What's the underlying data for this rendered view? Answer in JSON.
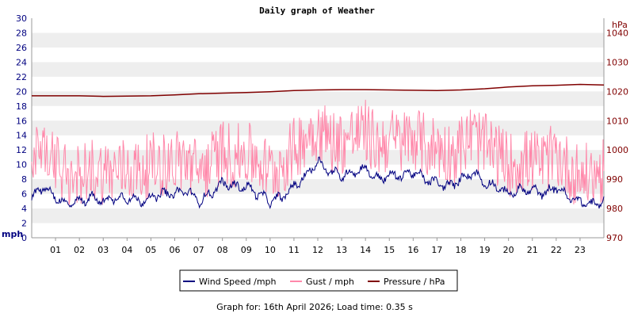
{
  "colors": {
    "wind": "#000080",
    "gust": "#ff88aa",
    "pressure": "#800000",
    "band": "#eeeeee",
    "left_axis": "#000080",
    "right_axis": "#800000"
  },
  "chart_data": {
    "type": "line",
    "title": "Daily graph of Weather",
    "ylabel_left": "mph",
    "ylabel_right": "hPa",
    "ylim_left": [
      0,
      30
    ],
    "ylim_right": [
      970,
      1045
    ],
    "yticks_left": [
      0,
      2,
      4,
      6,
      8,
      10,
      12,
      14,
      16,
      18,
      20,
      22,
      24,
      26,
      28,
      30
    ],
    "yticks_right": [
      970,
      980,
      990,
      1000,
      1010,
      1020,
      1030,
      1040
    ],
    "xlim": [
      0,
      24
    ],
    "x_tick_labels": [
      "01",
      "02",
      "03",
      "04",
      "05",
      "06",
      "07",
      "08",
      "09",
      "10",
      "11",
      "12",
      "13",
      "14",
      "15",
      "16",
      "17",
      "18",
      "19",
      "20",
      "21",
      "22",
      "23"
    ],
    "grid": "alternating horizontal bands",
    "legend_position": "bottom-center",
    "series": [
      {
        "name": "Wind Speed /mph",
        "axis": "left",
        "x": [
          0,
          0.5,
          1,
          1.5,
          2,
          2.5,
          3,
          3.5,
          4,
          4.5,
          5,
          5.5,
          6,
          6.5,
          7,
          7.5,
          8,
          8.5,
          9,
          9.5,
          10,
          10.5,
          11,
          11.5,
          12,
          12.5,
          13,
          13.5,
          14,
          14.5,
          15,
          15.5,
          16,
          16.5,
          17,
          17.5,
          18,
          18.5,
          19,
          19.5,
          20,
          20.5,
          21,
          21.5,
          22,
          22.5,
          23,
          23.5,
          24
        ],
        "values": [
          5.5,
          7.0,
          5.5,
          4.5,
          5.0,
          5.5,
          5.0,
          5.5,
          5.5,
          5.0,
          5.5,
          6.0,
          6.0,
          6.5,
          5.0,
          6.0,
          7.5,
          7.0,
          7.0,
          6.0,
          5.0,
          5.5,
          7.0,
          8.5,
          10.5,
          9.0,
          8.5,
          9.0,
          9.5,
          8.0,
          8.5,
          8.5,
          9.0,
          8.0,
          7.5,
          7.0,
          8.0,
          9.0,
          7.5,
          7.0,
          6.0,
          6.5,
          6.5,
          6.0,
          7.0,
          5.5,
          5.0,
          4.5,
          5.0
        ]
      },
      {
        "name": "Gust / mph",
        "axis": "left",
        "x": [
          0,
          0.5,
          1,
          1.5,
          2,
          2.5,
          3,
          3.5,
          4,
          4.5,
          5,
          5.5,
          6,
          6.5,
          7,
          7.5,
          8,
          8.5,
          9,
          9.5,
          10,
          10.5,
          11,
          11.5,
          12,
          12.5,
          13,
          13.5,
          14,
          14.5,
          15,
          15.5,
          16,
          16.5,
          17,
          17.5,
          18,
          18.5,
          19,
          19.5,
          20,
          20.5,
          21,
          21.5,
          22,
          22.5,
          23,
          23.5,
          24
        ],
        "values": [
          10.5,
          12.0,
          9.5,
          8.0,
          9.0,
          9.5,
          9.0,
          9.0,
          9.5,
          9.0,
          10.0,
          10.0,
          10.5,
          10.5,
          9.0,
          10.0,
          12.0,
          11.0,
          11.5,
          10.5,
          9.0,
          10.0,
          12.0,
          14.0,
          15.0,
          13.5,
          13.0,
          14.0,
          14.5,
          12.5,
          13.5,
          13.0,
          14.0,
          12.5,
          12.5,
          11.5,
          12.5,
          14.0,
          12.5,
          11.5,
          10.0,
          10.5,
          10.5,
          10.0,
          11.5,
          9.5,
          8.5,
          8.5,
          9.0
        ]
      },
      {
        "name": "Pressure / hPa",
        "axis": "right",
        "x": [
          0,
          1,
          2,
          3,
          4,
          5,
          6,
          7,
          8,
          9,
          10,
          11,
          12,
          13,
          14,
          15,
          16,
          17,
          18,
          19,
          20,
          21,
          22,
          23,
          24
        ],
        "values": [
          1018.5,
          1018.5,
          1018.5,
          1018.3,
          1018.4,
          1018.5,
          1018.8,
          1019.2,
          1019.4,
          1019.6,
          1019.9,
          1020.3,
          1020.5,
          1020.6,
          1020.6,
          1020.5,
          1020.4,
          1020.3,
          1020.5,
          1020.9,
          1021.5,
          1021.9,
          1022.1,
          1022.4,
          1022.2
        ]
      }
    ]
  },
  "footer": {
    "text": "Graph for: 16th April 2026; Load time: 0.35 s"
  }
}
